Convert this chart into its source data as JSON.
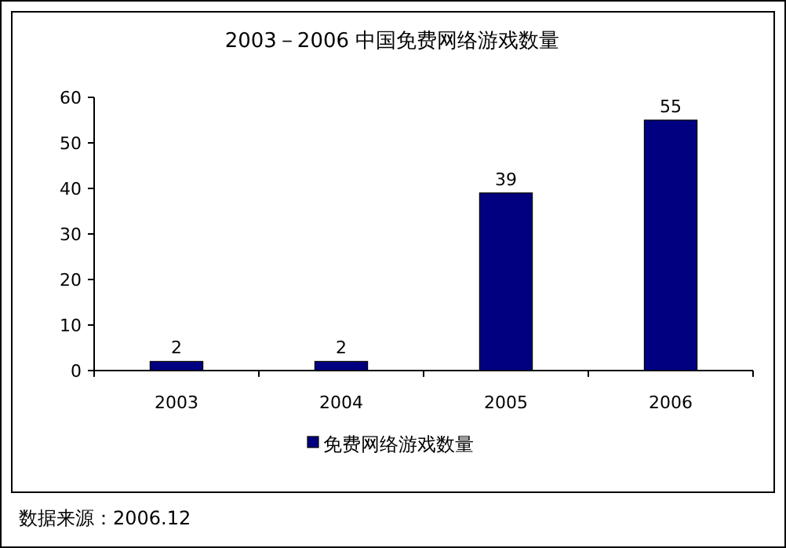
{
  "chart_data": {
    "type": "bar",
    "title": "2003－2006 中国免费网络游戏数量",
    "categories": [
      "2003",
      "2004",
      "2005",
      "2006"
    ],
    "series": [
      {
        "name": "免费网络游戏数量",
        "color": "#000080",
        "values": [
          2,
          2,
          39,
          55
        ]
      }
    ],
    "ylim": [
      0,
      60
    ],
    "yticks": [
      0,
      10,
      20,
      30,
      40,
      50,
      60
    ],
    "data_labels": true,
    "legend": "bottom",
    "grid": false,
    "annotations": [
      "数据来源：2006.12"
    ]
  }
}
